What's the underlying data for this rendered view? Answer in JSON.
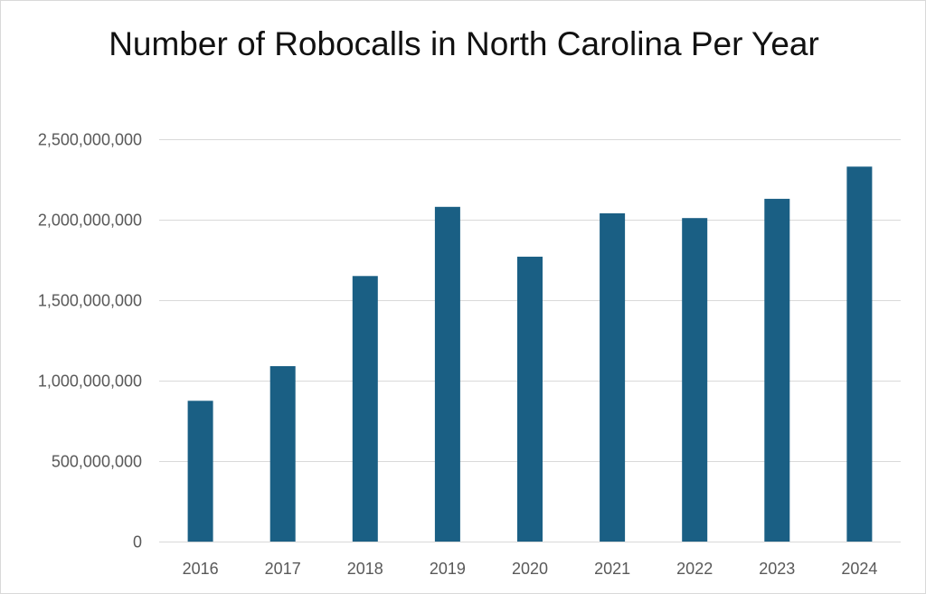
{
  "chart_data": {
    "type": "bar",
    "title": "Number of Robocalls in North Carolina Per Year",
    "xlabel": "",
    "ylabel": "",
    "categories": [
      "2016",
      "2017",
      "2018",
      "2019",
      "2020",
      "2021",
      "2022",
      "2023",
      "2024"
    ],
    "values": [
      875000000,
      1090000000,
      1650000000,
      2080000000,
      1770000000,
      2040000000,
      2010000000,
      2130000000,
      2330000000
    ],
    "ylim": [
      0,
      2500000000
    ],
    "yticks": [
      0,
      500000000,
      1000000000,
      1500000000,
      2000000000,
      2500000000
    ],
    "ytick_labels": [
      "0",
      "500,000,000",
      "1,000,000,000",
      "1,500,000,000",
      "2,000,000,000",
      "2,500,000,000"
    ],
    "bar_color": "#1a5f84",
    "gridline_color": "#d9d9d9",
    "grid": true,
    "legend": "none"
  }
}
